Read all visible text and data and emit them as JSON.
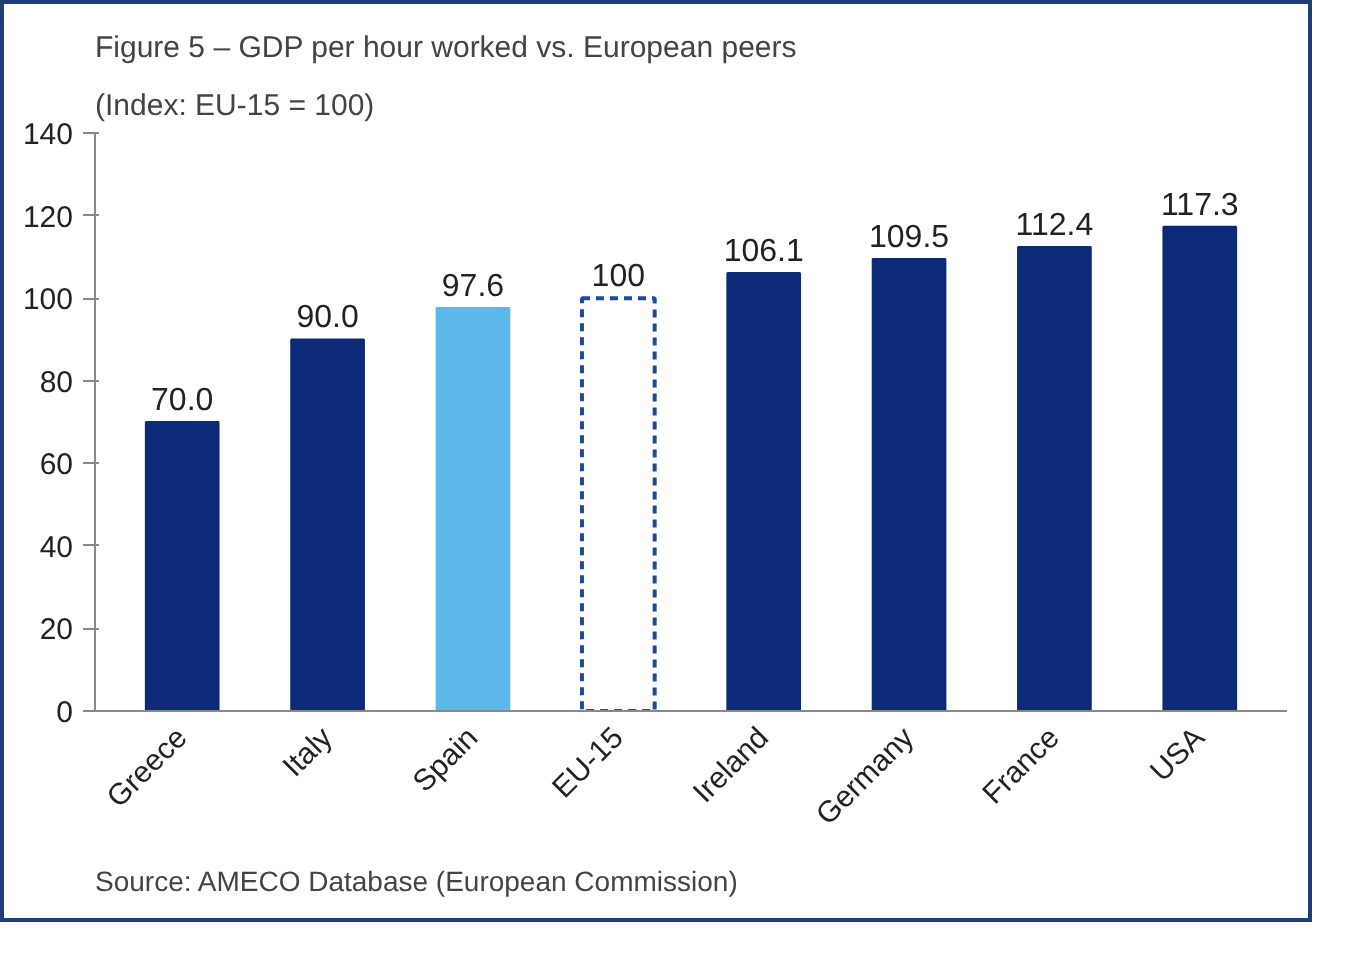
{
  "chart_data": {
    "type": "bar",
    "title": "Figure 5 – GDP per hour worked vs. European peers",
    "subtitle": "(Index: EU-15 = 100)",
    "categories": [
      "Greece",
      "Italy",
      "Spain",
      "EU-15",
      "Ireland",
      "Germany",
      "France",
      "USA"
    ],
    "values": [
      70.0,
      90.0,
      97.6,
      100,
      106.1,
      109.5,
      112.4,
      117.3
    ],
    "colors": [
      "#0c2a78",
      "#0c2a78",
      "#5cb8e8",
      "#ffffff",
      "#0c2a78",
      "#0c2a78",
      "#0c2a78",
      "#0c2a78"
    ],
    "value_labels": [
      "70.0",
      "90.0",
      "97.6",
      "100",
      "106.1",
      "109.5",
      "112.4",
      "117.3"
    ],
    "ylim": [
      0,
      140
    ],
    "yticks": [
      0,
      20,
      40,
      60,
      80,
      100,
      120,
      140
    ],
    "grid": false,
    "annotations": [
      "Source: AMECO Database (European Commission)"
    ]
  }
}
